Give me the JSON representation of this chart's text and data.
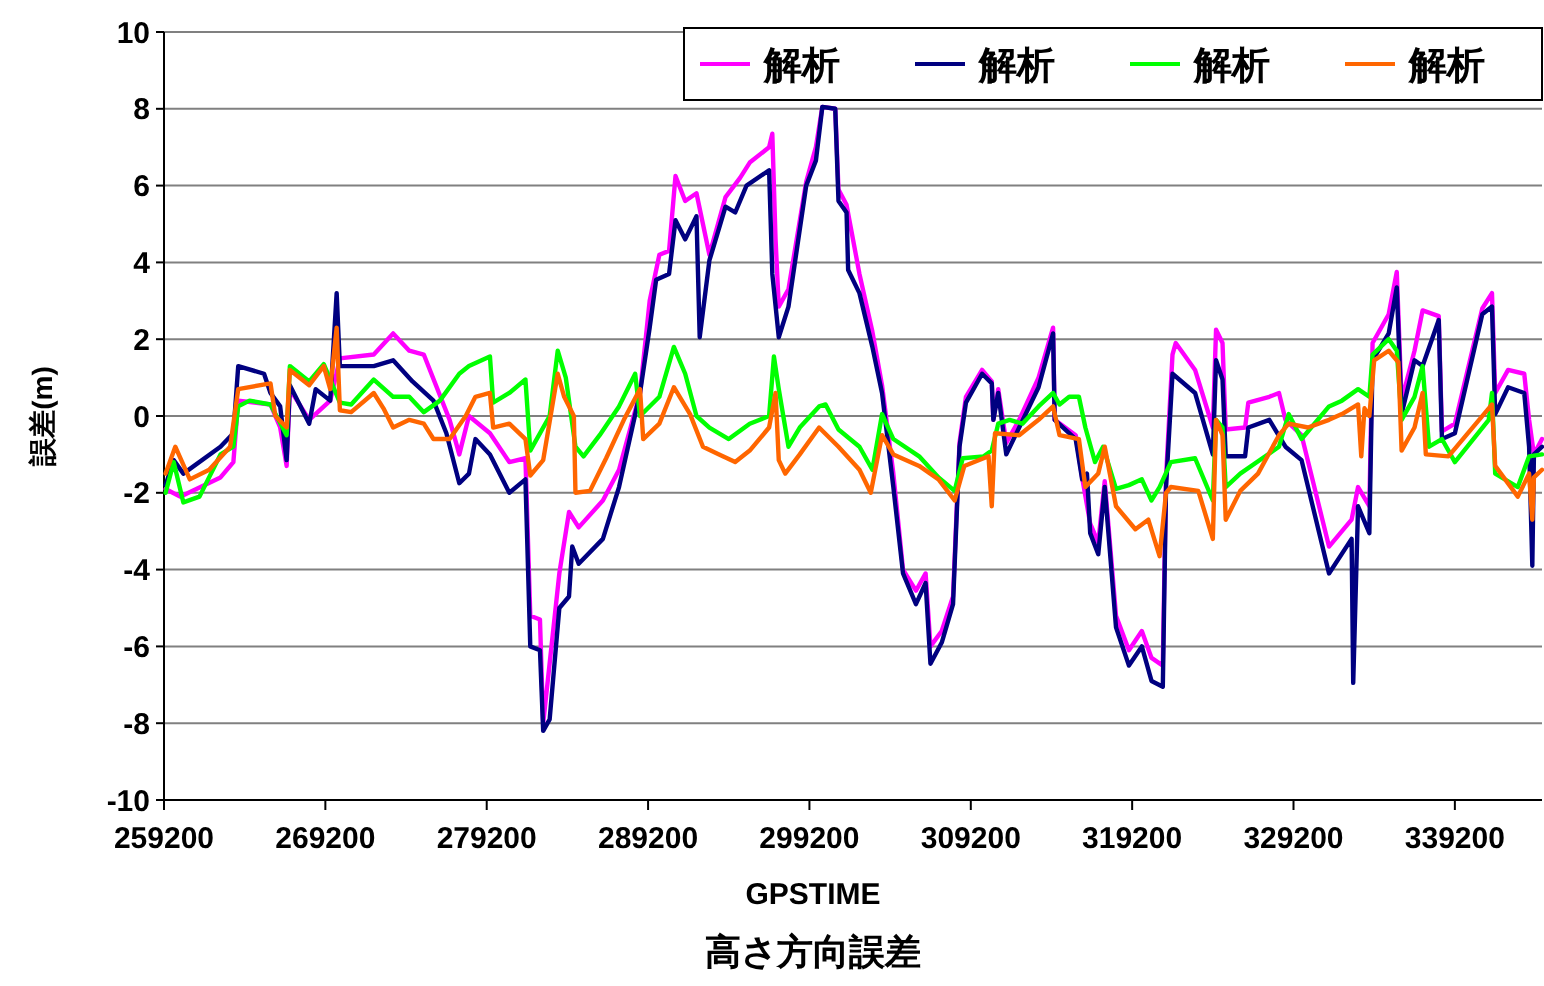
{
  "chart_data": {
    "type": "line",
    "title": "高さ方向誤差",
    "xlabel": "GPSTIME",
    "ylabel": "誤差(m)",
    "xlim": [
      259200,
      344600
    ],
    "ylim": [
      -10,
      10
    ],
    "xticks": [
      259200,
      269200,
      279200,
      289200,
      299200,
      309200,
      319200,
      329200,
      339200
    ],
    "yticks": [
      -10,
      -8,
      -6,
      -4,
      -2,
      0,
      2,
      4,
      6,
      8,
      10
    ],
    "grid": "y",
    "legend": "top right",
    "series": [
      {
        "name": "解析",
        "color": "#ff00ff",
        "x": [
          259300,
          260200,
          262700,
          263500,
          263800,
          265800,
          266400,
          266800,
          267000,
          268200,
          269500,
          269900,
          270100,
          272200,
          273400,
          274400,
          275300,
          276900,
          277500,
          278100,
          279400,
          280600,
          281600,
          281900,
          282500,
          282700,
          283700,
          284300,
          284900,
          286400,
          287400,
          288700,
          289300,
          289900,
          290500,
          290900,
          291500,
          292200,
          292400,
          293000,
          294000,
          294900,
          295500,
          296700,
          296900,
          297100,
          297300,
          297900,
          299000,
          299600,
          300000,
          300800,
          301000,
          301500,
          302300,
          303100,
          303700,
          304400,
          305000,
          305800,
          306400,
          306700,
          307400,
          308100,
          308500,
          308900,
          309900,
          310500,
          310600,
          310900,
          311400,
          312200,
          313400,
          314300,
          314400,
          315700,
          316100,
          316600,
          317100,
          317500,
          318200,
          319000,
          319800,
          320400,
          321100,
          321300,
          321700,
          321900,
          323100,
          324200,
          324400,
          324800,
          325000,
          326200,
          326400,
          327700,
          328300,
          328700,
          329700,
          331400,
          332800,
          333200,
          333900,
          334100,
          335100,
          335600,
          335900,
          336700,
          337200,
          338200,
          338400,
          339200,
          340900,
          341500,
          341700,
          342500,
          343500,
          343800,
          344100,
          344600
        ],
        "values": [
          -1.9,
          -2.1,
          -1.6,
          -1.2,
          0.4,
          0.3,
          -0.3,
          -1.3,
          0.7,
          -0.1,
          0.4,
          null,
          1.5,
          1.6,
          2.15,
          1.7,
          1.6,
          -0.1,
          -1.0,
          0.0,
          -0.45,
          -1.2,
          -1.1,
          -5.2,
          -5.3,
          -8.0,
          -4.1,
          -2.5,
          -2.9,
          -2.2,
          -1.4,
          0.6,
          3.0,
          4.2,
          4.3,
          6.25,
          5.6,
          5.8,
          null,
          4.2,
          5.7,
          6.2,
          6.6,
          7.0,
          7.35,
          4.6,
          2.85,
          3.3,
          6.1,
          7.0,
          8.05,
          8.0,
          5.9,
          5.5,
          3.7,
          2.2,
          0.8,
          -1.5,
          -4.0,
          -4.55,
          -4.1,
          -6.0,
          -5.6,
          -4.7,
          -0.7,
          0.5,
          1.2,
          0.9,
          -0.1,
          0.7,
          -0.7,
          -0.1,
          1.0,
          2.3,
          -0.1,
          -0.5,
          -1.6,
          -2.8,
          -3.3,
          -1.7,
          -5.2,
          -6.1,
          -5.6,
          -6.3,
          -6.5,
          -1.6,
          1.6,
          1.9,
          1.2,
          -0.3,
          2.25,
          1.9,
          -0.35,
          -0.3,
          0.35,
          0.5,
          0.6,
          -0.1,
          -0.5,
          -3.4,
          -2.7,
          -1.85,
          -2.35,
          1.9,
          2.65,
          3.75,
          0.4,
          1.7,
          2.75,
          2.6,
          -0.4,
          -0.2,
          2.8,
          3.2,
          0.6,
          1.2,
          1.1,
          -0.1,
          -1.0,
          -0.6
        ]
      },
      {
        "name": "解析",
        "color": "#000080",
        "x": [
          259300,
          259800,
          260400,
          262700,
          263500,
          263800,
          265400,
          265800,
          266400,
          266800,
          267000,
          268200,
          268600,
          269500,
          269900,
          270100,
          272200,
          273400,
          274600,
          275900,
          276700,
          277500,
          278100,
          278500,
          279400,
          280600,
          281600,
          281900,
          282500,
          282700,
          283100,
          283700,
          284300,
          284500,
          284900,
          286400,
          287400,
          288700,
          289300,
          289700,
          290500,
          290900,
          291500,
          292200,
          292400,
          293000,
          294000,
          294600,
          295300,
          296700,
          296900,
          297300,
          297900,
          299000,
          299600,
          300000,
          300800,
          301000,
          301500,
          301600,
          302300,
          303100,
          303700,
          304400,
          305000,
          305800,
          306400,
          306700,
          307400,
          308100,
          308500,
          308900,
          309900,
          310500,
          310600,
          310900,
          311400,
          312200,
          313400,
          314300,
          314400,
          315700,
          316100,
          316400,
          316600,
          317100,
          317500,
          318200,
          319000,
          319800,
          320400,
          321100,
          321300,
          321700,
          323100,
          324200,
          324400,
          324800,
          325000,
          326200,
          326400,
          327700,
          328700,
          329700,
          331400,
          332800,
          332900,
          333200,
          333900,
          334100,
          335100,
          335600,
          335900,
          336700,
          337200,
          338200,
          338400,
          339200,
          340900,
          341500,
          341700,
          342500,
          343500,
          343800,
          344000,
          344100,
          344600
        ],
        "values": [
          -1.8,
          -1.15,
          -1.5,
          -0.8,
          -0.45,
          1.3,
          1.1,
          0.6,
          0.25,
          -1.15,
          0.8,
          -0.2,
          0.7,
          0.4,
          3.2,
          1.3,
          1.3,
          1.45,
          0.9,
          0.4,
          -0.45,
          -1.75,
          -1.5,
          -0.6,
          -1.0,
          -2.0,
          -1.65,
          -6.0,
          -6.1,
          -8.2,
          -7.9,
          -5.0,
          -4.7,
          -3.4,
          -3.85,
          -3.2,
          -1.85,
          0.6,
          2.3,
          3.55,
          3.7,
          5.1,
          4.6,
          5.2,
          2.05,
          4.05,
          5.45,
          5.3,
          6.0,
          6.4,
          3.7,
          2.05,
          2.85,
          6.0,
          6.65,
          8.05,
          8.0,
          5.6,
          5.3,
          3.8,
          3.2,
          1.8,
          0.6,
          -1.85,
          -4.1,
          -4.9,
          -4.35,
          -6.45,
          -5.9,
          -4.9,
          -0.8,
          0.35,
          1.1,
          0.85,
          -0.1,
          0.6,
          -1.0,
          -0.3,
          0.75,
          2.15,
          -0.1,
          -0.6,
          -1.65,
          -1.5,
          -3.05,
          -3.6,
          -1.85,
          -5.5,
          -6.5,
          -6.0,
          -6.9,
          -7.05,
          -1.85,
          1.1,
          0.6,
          -1.0,
          1.45,
          0.95,
          -1.05,
          -1.05,
          -0.3,
          -0.1,
          -0.8,
          -1.15,
          -4.1,
          -3.2,
          -6.95,
          -2.35,
          -3.05,
          1.45,
          2.15,
          3.35,
          0.05,
          1.45,
          1.3,
          2.5,
          -0.6,
          -0.45,
          2.65,
          2.85,
          0.05,
          0.75,
          0.6,
          -0.8,
          -3.9,
          -1.0,
          -0.8
        ]
      },
      {
        "name": "解析",
        "color": "#00ff00",
        "x": [
          259300,
          259800,
          260400,
          261400,
          262700,
          263500,
          263800,
          264500,
          265800,
          266800,
          267000,
          268200,
          269100,
          269500,
          269900,
          270100,
          270800,
          272200,
          273400,
          274400,
          275300,
          276300,
          277500,
          278100,
          279400,
          279600,
          280600,
          281600,
          281900,
          283100,
          283600,
          284100,
          284700,
          285200,
          286200,
          287400,
          288400,
          288700,
          289900,
          290800,
          291500,
          292200,
          293000,
          294200,
          295500,
          296700,
          297000,
          297300,
          297900,
          298600,
          299800,
          300200,
          301000,
          302300,
          303100,
          303700,
          304400,
          306000,
          307200,
          308200,
          308700,
          310000,
          310500,
          310900,
          311600,
          312400,
          313400,
          314300,
          314700,
          315300,
          315900,
          316300,
          316900,
          317400,
          318200,
          319000,
          319800,
          320400,
          320900,
          321600,
          323100,
          324200,
          324400,
          324800,
          325000,
          325900,
          328300,
          328900,
          329700,
          331400,
          332200,
          333200,
          333900,
          334100,
          335100,
          335600,
          335900,
          336700,
          337200,
          337600,
          338400,
          339200,
          341300,
          341500,
          341700,
          343100,
          343800,
          344600
        ],
        "values": [
          -2.0,
          -1.2,
          -2.25,
          -2.1,
          -1.0,
          -0.8,
          0.25,
          0.4,
          0.3,
          -0.5,
          1.3,
          0.9,
          1.35,
          null,
          null,
          0.35,
          0.3,
          0.95,
          0.5,
          0.5,
          0.1,
          0.4,
          1.1,
          1.3,
          1.55,
          0.35,
          0.6,
          0.95,
          -0.9,
          0.0,
          1.7,
          1.0,
          -0.8,
          -1.05,
          -0.5,
          0.25,
          1.1,
          0.0,
          0.5,
          1.8,
          1.1,
          0.0,
          -0.3,
          -0.6,
          -0.2,
          0.0,
          1.55,
          0.7,
          -0.8,
          -0.3,
          0.25,
          0.3,
          -0.35,
          -0.8,
          -1.4,
          0.05,
          -0.6,
          -1.05,
          -1.6,
          -1.95,
          -1.1,
          -1.05,
          -0.9,
          -0.2,
          -0.1,
          -0.2,
          0.25,
          0.6,
          0.3,
          0.5,
          0.5,
          -0.3,
          -1.2,
          -0.8,
          -1.9,
          -1.8,
          -1.65,
          -2.2,
          -1.85,
          -1.2,
          -1.1,
          -2.2,
          -0.1,
          -0.3,
          -1.85,
          -1.5,
          -0.8,
          0.05,
          -0.6,
          0.25,
          0.4,
          0.7,
          0.5,
          1.6,
          2.0,
          1.7,
          -0.1,
          0.5,
          1.3,
          -0.8,
          -0.6,
          -1.2,
          -0.1,
          0.6,
          -1.5,
          -1.85,
          -1.05,
          -1.0
        ]
      },
      {
        "name": "解析",
        "color": "#ff6600",
        "x": [
          259300,
          259900,
          260800,
          262000,
          263300,
          263800,
          265800,
          266100,
          266800,
          267000,
          268200,
          269100,
          269500,
          269900,
          270100,
          270800,
          272200,
          272800,
          273400,
          274400,
          275300,
          275900,
          276900,
          277900,
          278500,
          279400,
          279600,
          280600,
          281600,
          281900,
          282700,
          283600,
          284000,
          284600,
          284700,
          285600,
          286600,
          287700,
          288700,
          288900,
          289900,
          290800,
          291800,
          292600,
          293600,
          294600,
          295500,
          296700,
          297100,
          297300,
          297700,
          298600,
          299800,
          301000,
          302300,
          303000,
          303700,
          304400,
          306000,
          307200,
          308200,
          308800,
          310300,
          310500,
          310700,
          312200,
          313400,
          314300,
          314700,
          315900,
          316300,
          317100,
          317500,
          318200,
          319400,
          320200,
          320900,
          321300,
          321600,
          323300,
          324200,
          324400,
          324800,
          325000,
          325900,
          327000,
          328300,
          328900,
          330100,
          331400,
          332200,
          333200,
          333400,
          333600,
          333900,
          334200,
          335100,
          335700,
          335900,
          336700,
          337200,
          337400,
          338800,
          341300,
          341500,
          341700,
          343100,
          343800,
          344000,
          344100,
          344600
        ],
        "values": [
          -1.5,
          -0.8,
          -1.65,
          -1.4,
          -0.8,
          0.7,
          0.85,
          0.0,
          -0.3,
          1.2,
          0.8,
          1.3,
          0.7,
          2.3,
          0.15,
          0.1,
          0.6,
          0.2,
          -0.3,
          -0.1,
          -0.2,
          -0.6,
          -0.6,
          0.0,
          0.5,
          0.6,
          -0.3,
          -0.2,
          -0.6,
          -1.55,
          -1.15,
          1.1,
          0.5,
          0.0,
          -2.0,
          -1.95,
          -1.1,
          -0.1,
          0.7,
          -0.6,
          -0.2,
          0.75,
          0.05,
          -0.8,
          -1.0,
          -1.2,
          -0.9,
          -0.3,
          0.6,
          -1.15,
          -1.5,
          -1.0,
          -0.3,
          -0.8,
          -1.4,
          -2.0,
          -0.5,
          -1.0,
          -1.3,
          -1.65,
          -2.2,
          -1.3,
          -1.05,
          -2.35,
          -0.45,
          -0.5,
          -0.1,
          0.25,
          -0.5,
          -0.6,
          -1.85,
          -1.5,
          -0.8,
          -2.35,
          -2.95,
          -2.7,
          -3.65,
          -2.0,
          -1.85,
          -1.95,
          -3.2,
          -0.1,
          -0.5,
          -2.7,
          -1.95,
          -1.5,
          -0.5,
          -0.2,
          -0.3,
          -0.1,
          0.05,
          0.3,
          -1.05,
          0.2,
          0.0,
          1.45,
          1.7,
          1.4,
          -0.9,
          -0.3,
          0.6,
          -1.0,
          -1.05,
          0.2,
          0.3,
          -1.3,
          -2.1,
          -1.5,
          -2.7,
          -1.6,
          -1.4
        ]
      }
    ]
  }
}
